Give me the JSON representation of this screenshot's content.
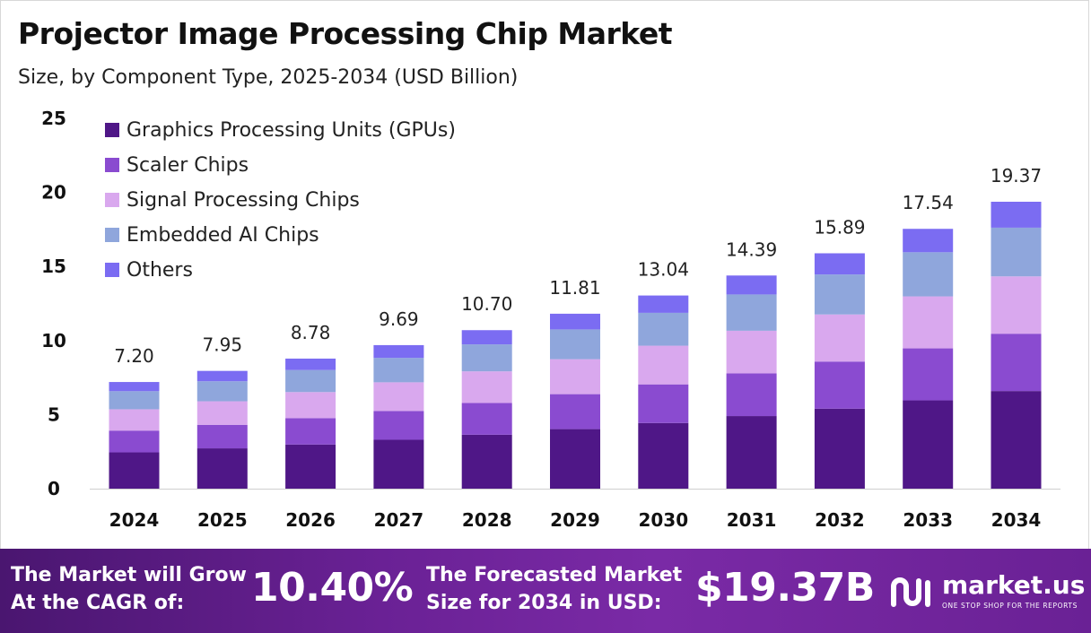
{
  "chart_data": {
    "type": "bar",
    "stacked": true,
    "title": "Projector Image Processing Chip Market",
    "subtitle": "Size, by Component Type, 2025-2034 (USD Billion)",
    "categories": [
      "2024",
      "2025",
      "2026",
      "2027",
      "2028",
      "2029",
      "2030",
      "2031",
      "2032",
      "2033",
      "2034"
    ],
    "totals": [
      7.2,
      7.95,
      8.78,
      9.69,
      10.7,
      11.81,
      13.04,
      14.39,
      15.89,
      17.54,
      19.37
    ],
    "total_labels": [
      "7.20",
      "7.95",
      "8.78",
      "9.69",
      "10.70",
      "11.81",
      "13.04",
      "14.39",
      "15.89",
      "17.54",
      "19.37"
    ],
    "series": [
      {
        "name": "Graphics Processing Units (GPUs)",
        "color": "#4f1787",
        "values": [
          2.45,
          2.72,
          2.98,
          3.3,
          3.64,
          4.02,
          4.43,
          4.9,
          5.4,
          5.96,
          6.59
        ]
      },
      {
        "name": "Scaler Chips",
        "color": "#8a4bd0",
        "values": [
          1.47,
          1.59,
          1.78,
          1.94,
          2.14,
          2.36,
          2.61,
          2.88,
          3.18,
          3.51,
          3.87
        ]
      },
      {
        "name": "Signal Processing Chips",
        "color": "#d9a8ee",
        "values": [
          1.44,
          1.59,
          1.76,
          1.94,
          2.14,
          2.36,
          2.61,
          2.88,
          3.18,
          3.51,
          3.87
        ]
      },
      {
        "name": "Embedded AI Chips",
        "color": "#8fa6dc",
        "values": [
          1.22,
          1.35,
          1.49,
          1.65,
          1.82,
          2.01,
          2.22,
          2.45,
          2.7,
          2.98,
          3.29
        ]
      },
      {
        "name": "Others",
        "color": "#7b6cf2",
        "values": [
          0.62,
          0.7,
          0.77,
          0.86,
          0.96,
          1.06,
          1.17,
          1.28,
          1.43,
          1.58,
          1.75
        ]
      }
    ],
    "yticks": [
      "0",
      "5",
      "10",
      "15",
      "20",
      "25"
    ],
    "ylim": [
      0,
      25
    ],
    "legend_position": "top-left",
    "grid": false
  },
  "footer": {
    "cagr_label_line1": "The Market will Grow",
    "cagr_label_line2": "At the CAGR of:",
    "cagr_value": "10.40%",
    "forecast_label_line1": "The Forecasted Market",
    "forecast_label_line2": "Size for 2034 in USD:",
    "forecast_value": "$19.37B",
    "brand_name": "market.us",
    "brand_tagline": "ONE STOP SHOP FOR THE REPORTS",
    "brand_icon": "market-us-logo-icon"
  }
}
